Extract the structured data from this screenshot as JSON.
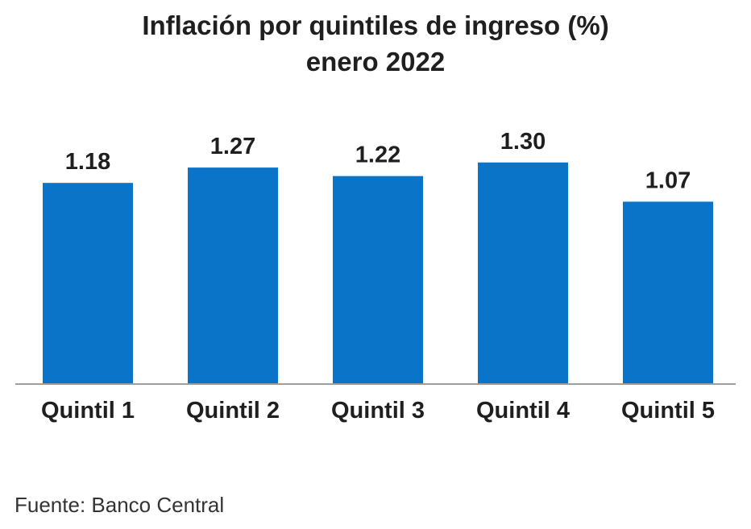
{
  "chart_data": {
    "type": "bar",
    "title": "Inflación por quintiles de ingreso (%)",
    "subtitle": "enero 2022",
    "categories": [
      "Quintil 1",
      "Quintil 2",
      "Quintil 3",
      "Quintil 4",
      "Quintil 5"
    ],
    "values": [
      1.18,
      1.27,
      1.22,
      1.3,
      1.07
    ],
    "value_labels": [
      "1.18",
      "1.27",
      "1.22",
      "1.30",
      "1.07"
    ],
    "ylim": [
      0,
      1.45
    ],
    "grid": false,
    "legend": "none",
    "bar_color": "#0a74c9",
    "axis_color": "#9e9e9e"
  },
  "source": "Fuente: Banco Central"
}
